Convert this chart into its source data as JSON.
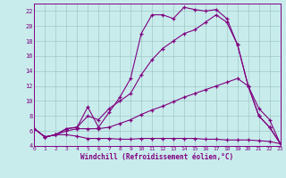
{
  "bg_color": "#c8ecec",
  "grid_color": "#a0c8c8",
  "line_color": "#800080",
  "xlabel": "Windchill (Refroidissement éolien,°C)",
  "xmin": 0,
  "xmax": 23,
  "ymin": 4,
  "ymax": 23,
  "yticks": [
    4,
    6,
    8,
    10,
    12,
    14,
    16,
    18,
    20,
    22
  ],
  "xticks": [
    0,
    1,
    2,
    3,
    4,
    5,
    6,
    7,
    8,
    9,
    10,
    11,
    12,
    13,
    14,
    15,
    16,
    17,
    18,
    19,
    20,
    21,
    22,
    23
  ],
  "curve1_x": [
    0,
    1,
    2,
    3,
    4,
    5,
    6,
    7,
    8,
    9,
    10,
    11,
    12,
    13,
    14,
    15,
    16,
    17,
    18,
    19,
    20,
    21,
    22,
    23
  ],
  "curve1_y": [
    6.3,
    5.2,
    5.5,
    6.3,
    6.5,
    9.2,
    6.5,
    8.5,
    10.5,
    13.0,
    19.0,
    21.5,
    21.5,
    21.0,
    22.5,
    22.2,
    22.0,
    22.2,
    21.0,
    17.5,
    12.0,
    8.0,
    6.5,
    4.3
  ],
  "curve2_x": [
    0,
    1,
    2,
    3,
    4,
    5,
    6,
    7,
    8,
    9,
    10,
    11,
    12,
    13,
    14,
    15,
    16,
    17,
    18,
    19,
    20,
    21,
    22,
    23
  ],
  "curve2_y": [
    6.3,
    5.2,
    5.5,
    6.3,
    6.5,
    8.0,
    7.5,
    9.0,
    10.0,
    11.0,
    13.5,
    15.5,
    17.0,
    18.0,
    19.0,
    19.5,
    20.5,
    21.5,
    20.5,
    17.5,
    12.0,
    8.0,
    6.5,
    4.3
  ],
  "curve3_x": [
    0,
    1,
    2,
    3,
    4,
    5,
    6,
    7,
    8,
    9,
    10,
    11,
    12,
    13,
    14,
    15,
    16,
    17,
    18,
    19,
    20,
    21,
    22,
    23
  ],
  "curve3_y": [
    6.3,
    5.2,
    5.5,
    6.0,
    6.3,
    6.3,
    6.3,
    6.5,
    7.0,
    7.5,
    8.2,
    8.8,
    9.3,
    9.9,
    10.5,
    11.0,
    11.5,
    12.0,
    12.5,
    13.0,
    12.0,
    9.0,
    7.5,
    4.3
  ],
  "curve4_x": [
    0,
    1,
    2,
    3,
    4,
    5,
    6,
    7,
    8,
    9,
    10,
    11,
    12,
    13,
    14,
    15,
    16,
    17,
    18,
    19,
    20,
    21,
    22,
    23
  ],
  "curve4_y": [
    6.3,
    5.2,
    5.5,
    5.5,
    5.3,
    5.0,
    5.0,
    5.0,
    4.9,
    4.9,
    5.0,
    5.0,
    5.0,
    5.0,
    5.0,
    5.0,
    4.9,
    4.9,
    4.8,
    4.8,
    4.8,
    4.7,
    4.6,
    4.3
  ]
}
